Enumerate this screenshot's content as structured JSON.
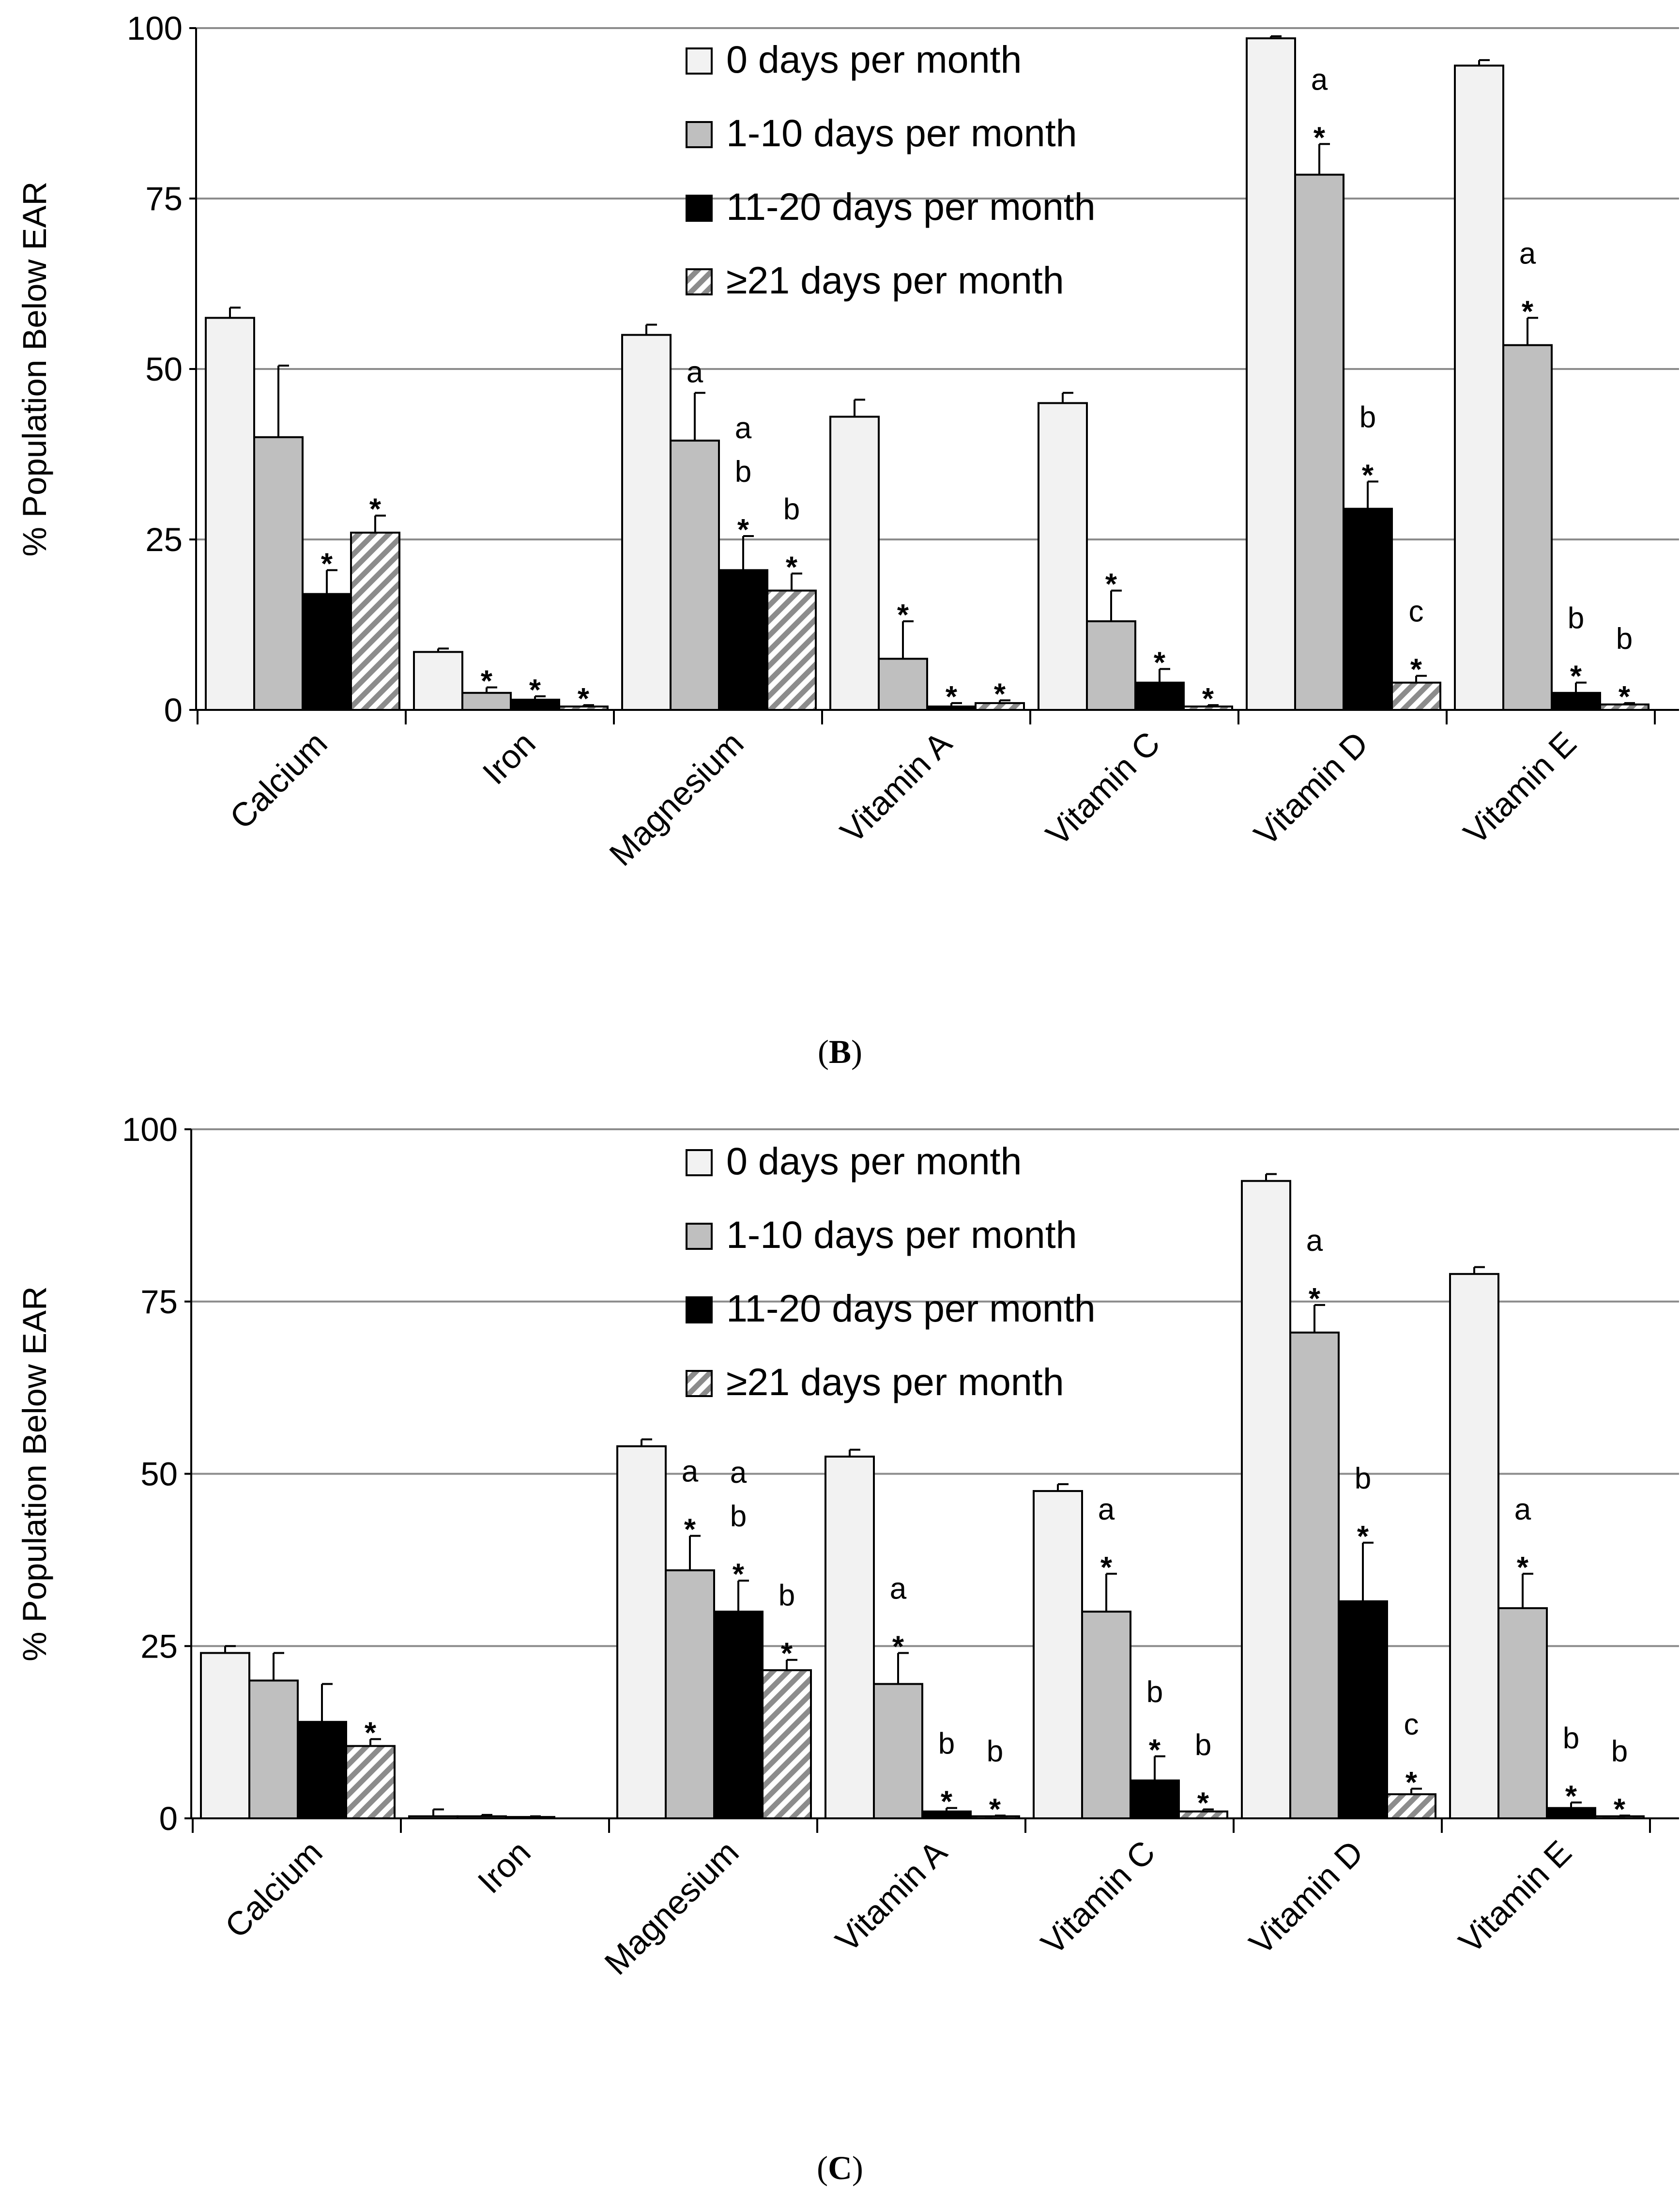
{
  "legend": [
    {
      "label": "0 days per month",
      "style": "light"
    },
    {
      "label": "1-10 days per month",
      "style": "medium"
    },
    {
      "label": "11-20 days per month",
      "style": "dark"
    },
    {
      "label": "≥21 days per month",
      "style": "hatched"
    }
  ],
  "colors": {
    "light": "#f2f2f2",
    "medium": "#bfbfbf",
    "dark": "#000000",
    "hatch_bg": "#ffffff",
    "hatch_line": "#8c8c8c",
    "grid": "#8c8c8c"
  },
  "chart_data": [
    {
      "type": "bar",
      "panel_label": {
        "open": "(",
        "letter": "B",
        "close": ")"
      },
      "ylabel": "% Population Below EAR",
      "ylim": [
        0,
        100
      ],
      "yticks": [
        "0",
        "25",
        "50",
        "75",
        "100"
      ],
      "categories": [
        "Calcium",
        "Iron",
        "Magnesium",
        "Vitamin A",
        "Vitamin C",
        "Vitamin D",
        "Vitamin E"
      ],
      "series": [
        {
          "name": "0 days per month",
          "values": [
            57.5,
            8.5,
            55.0,
            43.0,
            45.0,
            98.5,
            94.5
          ],
          "errors": [
            1.5,
            0.5,
            1.5,
            2.5,
            1.5,
            0.3,
            0.8
          ]
        },
        {
          "name": "1-10 days per month",
          "values": [
            40.0,
            2.5,
            39.5,
            7.5,
            13.0,
            78.5,
            53.5
          ],
          "errors": [
            10.5,
            0.8,
            7.0,
            5.5,
            4.5,
            4.5,
            4.0
          ]
        },
        {
          "name": "11-20 days per month",
          "values": [
            17.0,
            1.5,
            20.5,
            0.5,
            4.0,
            29.5,
            2.5
          ],
          "errors": [
            3.5,
            0.5,
            5.0,
            0.5,
            2.0,
            4.0,
            1.5
          ]
        },
        {
          "name": "≥21 days per month",
          "values": [
            26.0,
            0.5,
            17.5,
            1.0,
            0.5,
            4.0,
            0.8
          ],
          "errors": [
            2.5,
            0.2,
            2.5,
            0.4,
            0.2,
            1.0,
            0.2
          ]
        }
      ],
      "annotations": [
        [
          [
            "",
            "",
            "*",
            "*"
          ],
          [
            "",
            "*",
            "*",
            "*"
          ],
          [
            "",
            "a",
            "a\nb\n*",
            "b\n*"
          ],
          [
            "",
            "*",
            "*",
            "*"
          ],
          [
            "",
            "*",
            "*",
            "*"
          ],
          [
            "",
            "a\n*",
            "b\n*",
            "c\n*"
          ],
          [
            "",
            "a\n*",
            "b\n*",
            "b\n*"
          ]
        ]
      ]
    },
    {
      "type": "bar",
      "panel_label": {
        "open": "(",
        "letter": "C",
        "close": ")"
      },
      "ylabel": "% Population Below EAR",
      "ylim": [
        0,
        100
      ],
      "yticks": [
        "0",
        "25",
        "50",
        "75",
        "100"
      ],
      "categories": [
        "Calcium",
        "Iron",
        "Magnesium",
        "Vitamin A",
        "Vitamin C",
        "Vitamin D",
        "Vitamin E"
      ],
      "series": [
        {
          "name": "0 days per month",
          "values": [
            24.0,
            0.3,
            54.0,
            52.5,
            47.5,
            92.5,
            79.0
          ],
          "errors": [
            1.0,
            1.0,
            1.0,
            1.0,
            1.0,
            1.0,
            1.0
          ]
        },
        {
          "name": "1-10 days per month",
          "values": [
            20.0,
            0.3,
            36.0,
            19.5,
            30.0,
            70.5,
            30.5
          ],
          "errors": [
            4.0,
            0.2,
            5.0,
            4.5,
            5.5,
            4.0,
            5.0
          ]
        },
        {
          "name": "11-20 days per month",
          "values": [
            14.0,
            0.2,
            30.0,
            1.0,
            5.5,
            31.5,
            1.5
          ],
          "errors": [
            5.5,
            0.1,
            4.5,
            0.5,
            3.5,
            8.5,
            0.8
          ]
        },
        {
          "name": "≥21 days per month",
          "values": [
            10.5,
            0.0,
            21.5,
            0.3,
            1.0,
            3.5,
            0.3
          ],
          "errors": [
            1.0,
            0.0,
            1.5,
            0.1,
            0.3,
            0.8,
            0.1
          ]
        }
      ],
      "annotations": [
        [
          [
            "",
            "",
            "",
            "*"
          ],
          [
            "",
            "",
            "",
            ""
          ],
          [
            "",
            "a\n*",
            "a\nb\n*",
            "b\n*"
          ],
          [
            "",
            "a\n*",
            "b\n*",
            "b\n*"
          ],
          [
            "",
            "a\n*",
            "b\n*",
            "b\n*"
          ],
          [
            "",
            "a\n*",
            "b\n*",
            "c\n*"
          ],
          [
            "",
            "a\n*",
            "b\n*",
            "b\n*"
          ]
        ]
      ]
    }
  ]
}
